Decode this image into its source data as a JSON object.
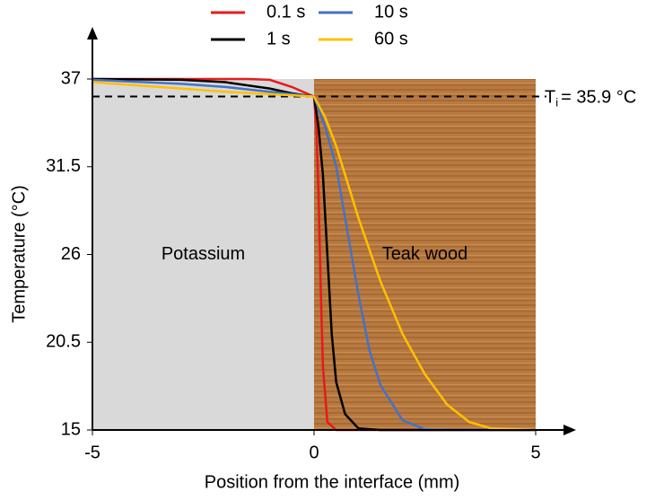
{
  "chart_data": {
    "type": "line",
    "x_label": "Position from the interface (mm)",
    "y_label": "Temperature (°C)",
    "xlim": [
      -5,
      5
    ],
    "xticks": [
      -5,
      0,
      5
    ],
    "ylim": [
      15,
      37
    ],
    "yticks": [
      15,
      20.5,
      26,
      31.5,
      37
    ],
    "regions": [
      {
        "label": "Potassium",
        "xlim": [
          -5,
          0
        ],
        "color": "#d9d9d9"
      },
      {
        "label": "Teak wood",
        "xlim": [
          0,
          5
        ],
        "color": "#b87a40"
      }
    ],
    "interface_temp": 35.9,
    "interface_label": {
      "symbol": "T",
      "subscript": "i",
      "text": "= 35.9 °C"
    },
    "series": [
      {
        "name": "0.1 s",
        "color": "#e8191c",
        "x": [
          -5,
          -1.5,
          -1,
          -0.5,
          0,
          0.05,
          0.1,
          0.15,
          0.2,
          0.3,
          0.5,
          5
        ],
        "values": [
          37,
          37,
          36.95,
          36.5,
          35.9,
          34,
          30,
          24,
          19,
          15.5,
          15,
          15
        ]
      },
      {
        "name": "1 s",
        "color": "#000000",
        "x": [
          -5,
          -3,
          -2,
          -1,
          -0.5,
          0,
          0.1,
          0.2,
          0.3,
          0.4,
          0.5,
          0.7,
          1.0,
          1.5,
          5
        ],
        "values": [
          37,
          36.95,
          36.8,
          36.4,
          36.1,
          35.9,
          34,
          31,
          26,
          21,
          18,
          16,
          15.1,
          15,
          15
        ]
      },
      {
        "name": "10 s",
        "color": "#4472c4",
        "x": [
          -5,
          -3,
          -2,
          -1,
          0,
          0.25,
          0.5,
          0.75,
          1.0,
          1.25,
          1.5,
          2.0,
          2.5,
          3,
          5
        ],
        "values": [
          36.95,
          36.7,
          36.5,
          36.2,
          35.9,
          34,
          31.5,
          27.5,
          23.5,
          20,
          17.8,
          15.6,
          15.05,
          15,
          15
        ]
      },
      {
        "name": "60 s",
        "color": "#ffc000",
        "x": [
          -5,
          -4,
          -3,
          -2,
          -1,
          0,
          0.25,
          0.5,
          1.0,
          1.5,
          2.0,
          2.5,
          3.0,
          3.5,
          4,
          5
        ],
        "values": [
          36.8,
          36.6,
          36.4,
          36.2,
          36.05,
          35.9,
          34.6,
          32.8,
          28.3,
          24.3,
          21,
          18.5,
          16.6,
          15.5,
          15.1,
          15
        ]
      }
    ]
  }
}
